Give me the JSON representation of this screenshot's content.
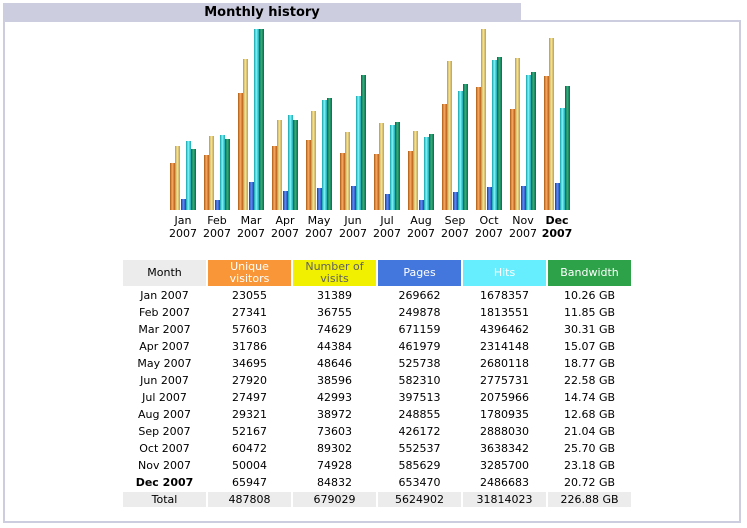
{
  "header": {
    "title": "Monthly history"
  },
  "colors": {
    "unique": "#f89638",
    "visits": "#f0f000",
    "pages": "#4477dd",
    "hits": "#66eeff",
    "bandwidth": "#2ea248",
    "frame": "#cccdde"
  },
  "table": {
    "headers": {
      "month": "Month",
      "unique": "Unique visitors",
      "visits": "Number of visits",
      "pages": "Pages",
      "hits": "Hits",
      "bandwidth": "Bandwidth"
    },
    "rows": [
      {
        "month": "Jan 2007",
        "unique": "23055",
        "visits": "31389",
        "pages": "269662",
        "hits": "1678357",
        "bandwidth": "10.26 GB"
      },
      {
        "month": "Feb 2007",
        "unique": "27341",
        "visits": "36755",
        "pages": "249878",
        "hits": "1813551",
        "bandwidth": "11.85 GB"
      },
      {
        "month": "Mar 2007",
        "unique": "57603",
        "visits": "74629",
        "pages": "671159",
        "hits": "4396462",
        "bandwidth": "30.31 GB"
      },
      {
        "month": "Apr 2007",
        "unique": "31786",
        "visits": "44384",
        "pages": "461979",
        "hits": "2314148",
        "bandwidth": "15.07 GB"
      },
      {
        "month": "May 2007",
        "unique": "34695",
        "visits": "48646",
        "pages": "525738",
        "hits": "2680118",
        "bandwidth": "18.77 GB"
      },
      {
        "month": "Jun 2007",
        "unique": "27920",
        "visits": "38596",
        "pages": "582310",
        "hits": "2775731",
        "bandwidth": "22.58 GB"
      },
      {
        "month": "Jul 2007",
        "unique": "27497",
        "visits": "42993",
        "pages": "397513",
        "hits": "2075966",
        "bandwidth": "14.74 GB"
      },
      {
        "month": "Aug 2007",
        "unique": "29321",
        "visits": "38972",
        "pages": "248855",
        "hits": "1780935",
        "bandwidth": "12.68 GB"
      },
      {
        "month": "Sep 2007",
        "unique": "52167",
        "visits": "73603",
        "pages": "426172",
        "hits": "2888030",
        "bandwidth": "21.04 GB"
      },
      {
        "month": "Oct 2007",
        "unique": "60472",
        "visits": "89302",
        "pages": "552537",
        "hits": "3638342",
        "bandwidth": "25.70 GB"
      },
      {
        "month": "Nov 2007",
        "unique": "50004",
        "visits": "74928",
        "pages": "585629",
        "hits": "3285700",
        "bandwidth": "23.18 GB"
      },
      {
        "month": "Dec 2007",
        "unique": "65947",
        "visits": "84832",
        "pages": "653470",
        "hits": "2486683",
        "bandwidth": "20.72 GB"
      }
    ],
    "total": {
      "month": "Total",
      "unique": "487808",
      "visits": "679029",
      "pages": "5624902",
      "hits": "31814023",
      "bandwidth": "226.88 GB"
    },
    "current_month": "Dec 2007"
  },
  "chart_data": {
    "type": "bar",
    "categories": [
      {
        "month": "Jan",
        "year": "2007"
      },
      {
        "month": "Feb",
        "year": "2007"
      },
      {
        "month": "Mar",
        "year": "2007"
      },
      {
        "month": "Apr",
        "year": "2007"
      },
      {
        "month": "May",
        "year": "2007"
      },
      {
        "month": "Jun",
        "year": "2007"
      },
      {
        "month": "Jul",
        "year": "2007"
      },
      {
        "month": "Aug",
        "year": "2007"
      },
      {
        "month": "Sep",
        "year": "2007"
      },
      {
        "month": "Oct",
        "year": "2007"
      },
      {
        "month": "Nov",
        "year": "2007"
      },
      {
        "month": "Dec",
        "year": "2007"
      }
    ],
    "current_index": 11,
    "scales": {
      "visitors": 89302,
      "pages_hits": 4396462,
      "bandwidth": 30.31
    },
    "series": [
      {
        "key": "unique",
        "values": [
          23055,
          27341,
          57603,
          31786,
          34695,
          27920,
          27497,
          29321,
          52167,
          60472,
          50004,
          65947
        ]
      },
      {
        "key": "visits",
        "values": [
          31389,
          36755,
          74629,
          44384,
          48646,
          38596,
          42993,
          38972,
          73603,
          89302,
          74928,
          84832
        ]
      },
      {
        "key": "pages",
        "values": [
          269662,
          249878,
          671159,
          461979,
          525738,
          582310,
          397513,
          248855,
          426172,
          552537,
          585629,
          653470
        ]
      },
      {
        "key": "hits",
        "values": [
          1678357,
          1813551,
          4396462,
          2314148,
          2680118,
          2775731,
          2075966,
          1780935,
          2888030,
          3638342,
          3285700,
          2486683
        ]
      },
      {
        "key": "bandwidth",
        "values": [
          10.26,
          11.85,
          30.31,
          15.07,
          18.77,
          22.58,
          14.74,
          12.68,
          21.04,
          25.7,
          23.18,
          20.72
        ]
      }
    ]
  }
}
